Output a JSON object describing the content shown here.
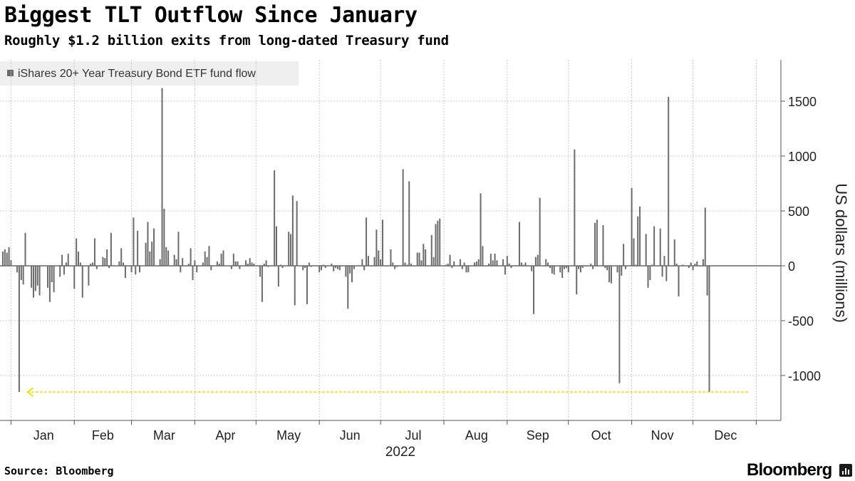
{
  "header": {
    "title": "Biggest TLT Outflow Since January",
    "subtitle": "Roughly $1.2 billion exits from long-dated Treasury fund"
  },
  "footer": {
    "source": "Source: Bloomberg",
    "brand": "Bloomberg"
  },
  "colors": {
    "bar": "#6b6b6b",
    "grid": "#c8c8c8",
    "zero_line": "#666666",
    "arrow": "#f2e000",
    "legend_bg": "#efefef"
  },
  "chart_data": {
    "type": "bar",
    "legend": [
      "iShares 20+ Year Treasury Bond ETF fund flow"
    ],
    "legend_position": "top-left",
    "ylabel": "US dollars (millions)",
    "y_axis_side": "right",
    "ylim": [
      -1250,
      1900
    ],
    "yticks": [
      1500,
      1000,
      500,
      0,
      -500,
      -1000
    ],
    "ytick_labels": [
      "1500",
      "1000",
      "500",
      "0",
      "-500",
      "-1000"
    ],
    "xlim": [
      "2021-12-27",
      "2023-01-03"
    ],
    "x_ticks": [
      {
        "date": "2021-12-31",
        "label": "Dec"
      },
      {
        "date": "2022-01-31",
        "label": "Jan"
      },
      {
        "date": "2022-02-28",
        "label": "Feb"
      },
      {
        "date": "2022-03-31",
        "label": "Mar"
      },
      {
        "date": "2022-04-30",
        "label": "Apr"
      },
      {
        "date": "2022-05-31",
        "label": "May"
      },
      {
        "date": "2022-06-30",
        "label": "Jun"
      },
      {
        "date": "2022-07-31",
        "label": "Jul"
      },
      {
        "date": "2022-08-31",
        "label": "Aug"
      },
      {
        "date": "2022-09-30",
        "label": "Sep"
      },
      {
        "date": "2022-10-31",
        "label": "Oct"
      },
      {
        "date": "2022-11-30",
        "label": "Nov"
      },
      {
        "date": "2022-12-31",
        "label": "Dec"
      }
    ],
    "x_month_labels": [
      {
        "date": "2021-12-16",
        "label": "Dec"
      },
      {
        "date": "2022-01-16",
        "label": "Jan"
      },
      {
        "date": "2022-02-14",
        "label": "Feb"
      },
      {
        "date": "2022-03-16",
        "label": "Mar"
      },
      {
        "date": "2022-04-15",
        "label": "Apr"
      },
      {
        "date": "2022-05-16",
        "label": "May"
      },
      {
        "date": "2022-06-15",
        "label": "Jun"
      },
      {
        "date": "2022-07-16",
        "label": "Jul"
      },
      {
        "date": "2022-08-16",
        "label": "Aug"
      },
      {
        "date": "2022-09-15",
        "label": "Sep"
      },
      {
        "date": "2022-10-16",
        "label": "Oct"
      },
      {
        "date": "2022-11-15",
        "label": "Nov"
      },
      {
        "date": "2022-12-16",
        "label": "Dec"
      }
    ],
    "year_label": "2022",
    "grid": true,
    "annotation": {
      "type": "arrow",
      "from": "2022-12-27",
      "to": "2021-12-30",
      "y": -1150,
      "color": "#f2e000"
    },
    "points": [
      {
        "x": "2021-12-27",
        "y": 130
      },
      {
        "x": "2021-12-28",
        "y": 150
      },
      {
        "x": "2021-12-29",
        "y": 120
      },
      {
        "x": "2021-12-30",
        "y": 170
      },
      {
        "x": "2021-12-31",
        "y": 50
      },
      {
        "x": "2022-01-03",
        "y": -60
      },
      {
        "x": "2022-01-04",
        "y": -1150
      },
      {
        "x": "2022-01-05",
        "y": -130
      },
      {
        "x": "2022-01-06",
        "y": -170
      },
      {
        "x": "2022-01-07",
        "y": 300
      },
      {
        "x": "2022-01-10",
        "y": -200
      },
      {
        "x": "2022-01-11",
        "y": -290
      },
      {
        "x": "2022-01-12",
        "y": -230
      },
      {
        "x": "2022-01-13",
        "y": -180
      },
      {
        "x": "2022-01-14",
        "y": -270
      },
      {
        "x": "2022-01-18",
        "y": -200
      },
      {
        "x": "2022-01-19",
        "y": -330
      },
      {
        "x": "2022-01-20",
        "y": -150
      },
      {
        "x": "2022-01-21",
        "y": -240
      },
      {
        "x": "2022-01-24",
        "y": -100
      },
      {
        "x": "2022-01-25",
        "y": 100
      },
      {
        "x": "2022-01-26",
        "y": -80
      },
      {
        "x": "2022-01-27",
        "y": 30
      },
      {
        "x": "2022-01-28",
        "y": 110
      },
      {
        "x": "2022-01-31",
        "y": -210
      },
      {
        "x": "2022-02-01",
        "y": 250
      },
      {
        "x": "2022-02-02",
        "y": 130
      },
      {
        "x": "2022-02-03",
        "y": 30
      },
      {
        "x": "2022-02-04",
        "y": -290
      },
      {
        "x": "2022-02-07",
        "y": -180
      },
      {
        "x": "2022-02-08",
        "y": 20
      },
      {
        "x": "2022-02-09",
        "y": 30
      },
      {
        "x": "2022-02-10",
        "y": 250
      },
      {
        "x": "2022-02-11",
        "y": -30
      },
      {
        "x": "2022-02-14",
        "y": 80
      },
      {
        "x": "2022-02-15",
        "y": 70
      },
      {
        "x": "2022-02-16",
        "y": 150
      },
      {
        "x": "2022-02-17",
        "y": -20
      },
      {
        "x": "2022-02-18",
        "y": 300
      },
      {
        "x": "2022-02-22",
        "y": 40
      },
      {
        "x": "2022-02-23",
        "y": 160
      },
      {
        "x": "2022-02-24",
        "y": 30
      },
      {
        "x": "2022-02-25",
        "y": -110
      },
      {
        "x": "2022-02-28",
        "y": -60
      },
      {
        "x": "2022-03-01",
        "y": 440
      },
      {
        "x": "2022-03-02",
        "y": -80
      },
      {
        "x": "2022-03-03",
        "y": 320
      },
      {
        "x": "2022-03-04",
        "y": -60
      },
      {
        "x": "2022-03-07",
        "y": 210
      },
      {
        "x": "2022-03-08",
        "y": 400
      },
      {
        "x": "2022-03-09",
        "y": 130
      },
      {
        "x": "2022-03-10",
        "y": 220
      },
      {
        "x": "2022-03-11",
        "y": 340
      },
      {
        "x": "2022-03-14",
        "y": 60
      },
      {
        "x": "2022-03-15",
        "y": 1620
      },
      {
        "x": "2022-03-16",
        "y": 520
      },
      {
        "x": "2022-03-17",
        "y": 170
      },
      {
        "x": "2022-03-18",
        "y": 140
      },
      {
        "x": "2022-03-21",
        "y": 100
      },
      {
        "x": "2022-03-22",
        "y": 60
      },
      {
        "x": "2022-03-23",
        "y": 310
      },
      {
        "x": "2022-03-24",
        "y": -60
      },
      {
        "x": "2022-03-25",
        "y": 70
      },
      {
        "x": "2022-03-28",
        "y": 20
      },
      {
        "x": "2022-03-29",
        "y": 160
      },
      {
        "x": "2022-03-30",
        "y": -130
      },
      {
        "x": "2022-03-31",
        "y": 50
      },
      {
        "x": "2022-04-01",
        "y": -60
      },
      {
        "x": "2022-04-04",
        "y": 30
      },
      {
        "x": "2022-04-05",
        "y": 130
      },
      {
        "x": "2022-04-06",
        "y": 80
      },
      {
        "x": "2022-04-07",
        "y": 180
      },
      {
        "x": "2022-04-08",
        "y": -40
      },
      {
        "x": "2022-04-11",
        "y": 40
      },
      {
        "x": "2022-04-12",
        "y": 20
      },
      {
        "x": "2022-04-13",
        "y": 110
      },
      {
        "x": "2022-04-14",
        "y": 140
      },
      {
        "x": "2022-04-18",
        "y": -30
      },
      {
        "x": "2022-04-19",
        "y": 110
      },
      {
        "x": "2022-04-20",
        "y": 40
      },
      {
        "x": "2022-04-21",
        "y": 40
      },
      {
        "x": "2022-04-22",
        "y": -30
      },
      {
        "x": "2022-04-25",
        "y": 50
      },
      {
        "x": "2022-04-26",
        "y": 20
      },
      {
        "x": "2022-04-27",
        "y": 70
      },
      {
        "x": "2022-04-28",
        "y": 30
      },
      {
        "x": "2022-04-29",
        "y": 20
      },
      {
        "x": "2022-05-02",
        "y": -100
      },
      {
        "x": "2022-05-03",
        "y": -330
      },
      {
        "x": "2022-05-04",
        "y": 20
      },
      {
        "x": "2022-05-05",
        "y": 50
      },
      {
        "x": "2022-05-06",
        "y": -10
      },
      {
        "x": "2022-05-09",
        "y": 870
      },
      {
        "x": "2022-05-10",
        "y": 360
      },
      {
        "x": "2022-05-11",
        "y": -190
      },
      {
        "x": "2022-05-12",
        "y": 10
      },
      {
        "x": "2022-05-13",
        "y": -20
      },
      {
        "x": "2022-05-16",
        "y": 310
      },
      {
        "x": "2022-05-17",
        "y": 290
      },
      {
        "x": "2022-05-18",
        "y": 640
      },
      {
        "x": "2022-05-19",
        "y": -360
      },
      {
        "x": "2022-05-20",
        "y": 590
      },
      {
        "x": "2022-05-23",
        "y": -40
      },
      {
        "x": "2022-05-24",
        "y": -20
      },
      {
        "x": "2022-05-25",
        "y": -350
      },
      {
        "x": "2022-05-26",
        "y": 30
      },
      {
        "x": "2022-05-27",
        "y": -10
      },
      {
        "x": "2022-05-31",
        "y": -60
      },
      {
        "x": "2022-06-01",
        "y": -40
      },
      {
        "x": "2022-06-02",
        "y": 10
      },
      {
        "x": "2022-06-03",
        "y": -20
      },
      {
        "x": "2022-06-06",
        "y": 20
      },
      {
        "x": "2022-06-07",
        "y": -50
      },
      {
        "x": "2022-06-08",
        "y": -20
      },
      {
        "x": "2022-06-09",
        "y": -30
      },
      {
        "x": "2022-06-10",
        "y": -40
      },
      {
        "x": "2022-06-13",
        "y": -100
      },
      {
        "x": "2022-06-14",
        "y": -390
      },
      {
        "x": "2022-06-15",
        "y": -70
      },
      {
        "x": "2022-06-16",
        "y": -150
      },
      {
        "x": "2022-06-17",
        "y": -30
      },
      {
        "x": "2022-06-21",
        "y": 60
      },
      {
        "x": "2022-06-22",
        "y": -40
      },
      {
        "x": "2022-06-23",
        "y": 440
      },
      {
        "x": "2022-06-24",
        "y": 90
      },
      {
        "x": "2022-06-27",
        "y": 80
      },
      {
        "x": "2022-06-28",
        "y": 330
      },
      {
        "x": "2022-06-29",
        "y": 140
      },
      {
        "x": "2022-06-30",
        "y": 60
      },
      {
        "x": "2022-07-01",
        "y": 420
      },
      {
        "x": "2022-07-05",
        "y": 150
      },
      {
        "x": "2022-07-06",
        "y": 30
      },
      {
        "x": "2022-07-07",
        "y": -30
      },
      {
        "x": "2022-07-08",
        "y": -10
      },
      {
        "x": "2022-07-11",
        "y": 880
      },
      {
        "x": "2022-07-12",
        "y": 30
      },
      {
        "x": "2022-07-13",
        "y": 10
      },
      {
        "x": "2022-07-14",
        "y": 770
      },
      {
        "x": "2022-07-15",
        "y": 20
      },
      {
        "x": "2022-07-18",
        "y": 120
      },
      {
        "x": "2022-07-19",
        "y": 120
      },
      {
        "x": "2022-07-20",
        "y": 50
      },
      {
        "x": "2022-07-21",
        "y": 200
      },
      {
        "x": "2022-07-22",
        "y": 150
      },
      {
        "x": "2022-07-25",
        "y": 280
      },
      {
        "x": "2022-07-26",
        "y": 80
      },
      {
        "x": "2022-07-27",
        "y": 380
      },
      {
        "x": "2022-07-28",
        "y": 410
      },
      {
        "x": "2022-07-29",
        "y": 430
      },
      {
        "x": "2022-08-01",
        "y": 10
      },
      {
        "x": "2022-08-02",
        "y": 20
      },
      {
        "x": "2022-08-03",
        "y": 100
      },
      {
        "x": "2022-08-04",
        "y": -20
      },
      {
        "x": "2022-08-05",
        "y": 40
      },
      {
        "x": "2022-08-08",
        "y": 60
      },
      {
        "x": "2022-08-09",
        "y": -30
      },
      {
        "x": "2022-08-10",
        "y": 30
      },
      {
        "x": "2022-08-11",
        "y": -60
      },
      {
        "x": "2022-08-12",
        "y": -60
      },
      {
        "x": "2022-08-15",
        "y": 30
      },
      {
        "x": "2022-08-16",
        "y": 40
      },
      {
        "x": "2022-08-17",
        "y": 60
      },
      {
        "x": "2022-08-18",
        "y": 660
      },
      {
        "x": "2022-08-19",
        "y": 180
      },
      {
        "x": "2022-08-22",
        "y": 20
      },
      {
        "x": "2022-08-23",
        "y": 110
      },
      {
        "x": "2022-08-24",
        "y": 50
      },
      {
        "x": "2022-08-25",
        "y": 110
      },
      {
        "x": "2022-08-26",
        "y": 50
      },
      {
        "x": "2022-08-29",
        "y": 60
      },
      {
        "x": "2022-08-30",
        "y": -80
      },
      {
        "x": "2022-08-31",
        "y": 90
      },
      {
        "x": "2022-09-01",
        "y": 20
      },
      {
        "x": "2022-09-02",
        "y": -20
      },
      {
        "x": "2022-09-06",
        "y": 400
      },
      {
        "x": "2022-09-07",
        "y": 30
      },
      {
        "x": "2022-09-08",
        "y": 10
      },
      {
        "x": "2022-09-09",
        "y": 30
      },
      {
        "x": "2022-09-12",
        "y": -50
      },
      {
        "x": "2022-09-13",
        "y": -440
      },
      {
        "x": "2022-09-14",
        "y": 80
      },
      {
        "x": "2022-09-15",
        "y": 100
      },
      {
        "x": "2022-09-16",
        "y": 620
      },
      {
        "x": "2022-09-19",
        "y": 60
      },
      {
        "x": "2022-09-20",
        "y": 30
      },
      {
        "x": "2022-09-21",
        "y": -20
      },
      {
        "x": "2022-09-22",
        "y": -70
      },
      {
        "x": "2022-09-23",
        "y": -80
      },
      {
        "x": "2022-09-26",
        "y": -60
      },
      {
        "x": "2022-09-27",
        "y": -110
      },
      {
        "x": "2022-09-28",
        "y": -30
      },
      {
        "x": "2022-09-29",
        "y": -20
      },
      {
        "x": "2022-09-30",
        "y": -60
      },
      {
        "x": "2022-10-03",
        "y": 1060
      },
      {
        "x": "2022-10-04",
        "y": -260
      },
      {
        "x": "2022-10-05",
        "y": -30
      },
      {
        "x": "2022-10-06",
        "y": -60
      },
      {
        "x": "2022-10-07",
        "y": -20
      },
      {
        "x": "2022-10-11",
        "y": 20
      },
      {
        "x": "2022-10-12",
        "y": -30
      },
      {
        "x": "2022-10-13",
        "y": 390
      },
      {
        "x": "2022-10-14",
        "y": 420
      },
      {
        "x": "2022-10-17",
        "y": 370
      },
      {
        "x": "2022-10-18",
        "y": -20
      },
      {
        "x": "2022-10-19",
        "y": -40
      },
      {
        "x": "2022-10-20",
        "y": -150
      },
      {
        "x": "2022-10-21",
        "y": -160
      },
      {
        "x": "2022-10-24",
        "y": -60
      },
      {
        "x": "2022-10-25",
        "y": -1070
      },
      {
        "x": "2022-10-26",
        "y": -90
      },
      {
        "x": "2022-10-27",
        "y": 200
      },
      {
        "x": "2022-10-28",
        "y": -30
      },
      {
        "x": "2022-10-31",
        "y": 710
      },
      {
        "x": "2022-11-01",
        "y": 250
      },
      {
        "x": "2022-11-02",
        "y": 10
      },
      {
        "x": "2022-11-03",
        "y": 450
      },
      {
        "x": "2022-11-04",
        "y": 540
      },
      {
        "x": "2022-11-07",
        "y": 290
      },
      {
        "x": "2022-11-08",
        "y": -200
      },
      {
        "x": "2022-11-09",
        "y": -130
      },
      {
        "x": "2022-11-10",
        "y": 10
      },
      {
        "x": "2022-11-11",
        "y": 360
      },
      {
        "x": "2022-11-14",
        "y": 340
      },
      {
        "x": "2022-11-15",
        "y": -100
      },
      {
        "x": "2022-11-16",
        "y": 90
      },
      {
        "x": "2022-11-17",
        "y": -140
      },
      {
        "x": "2022-11-18",
        "y": 1540
      },
      {
        "x": "2022-11-21",
        "y": 240
      },
      {
        "x": "2022-11-22",
        "y": 20
      },
      {
        "x": "2022-11-23",
        "y": -280
      },
      {
        "x": "2022-11-25",
        "y": 10
      },
      {
        "x": "2022-11-28",
        "y": -20
      },
      {
        "x": "2022-11-29",
        "y": 30
      },
      {
        "x": "2022-11-30",
        "y": -40
      },
      {
        "x": "2022-12-01",
        "y": 20
      },
      {
        "x": "2022-12-02",
        "y": 40
      },
      {
        "x": "2022-12-05",
        "y": 60
      },
      {
        "x": "2022-12-06",
        "y": 530
      },
      {
        "x": "2022-12-07",
        "y": -270
      },
      {
        "x": "2022-12-08",
        "y": -1150
      }
    ]
  }
}
